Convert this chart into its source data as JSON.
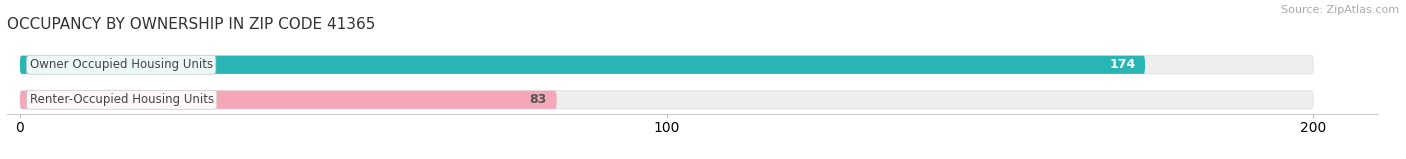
{
  "title": "OCCUPANCY BY OWNERSHIP IN ZIP CODE 41365",
  "source": "Source: ZipAtlas.com",
  "categories": [
    "Owner Occupied Housing Units",
    "Renter-Occupied Housing Units"
  ],
  "values": [
    174,
    83
  ],
  "bar_colors": [
    "#2ab5b5",
    "#f4a7b9"
  ],
  "value_text_colors": [
    "#ffffff",
    "#555555"
  ],
  "xlim": [
    0,
    210
  ],
  "xticks": [
    0,
    100,
    200
  ],
  "title_fontsize": 11,
  "label_fontsize": 8.5,
  "value_fontsize": 9,
  "source_fontsize": 8,
  "bar_height": 0.52,
  "background_color": "#ffffff",
  "bar_bg_color": "#eeeeee"
}
